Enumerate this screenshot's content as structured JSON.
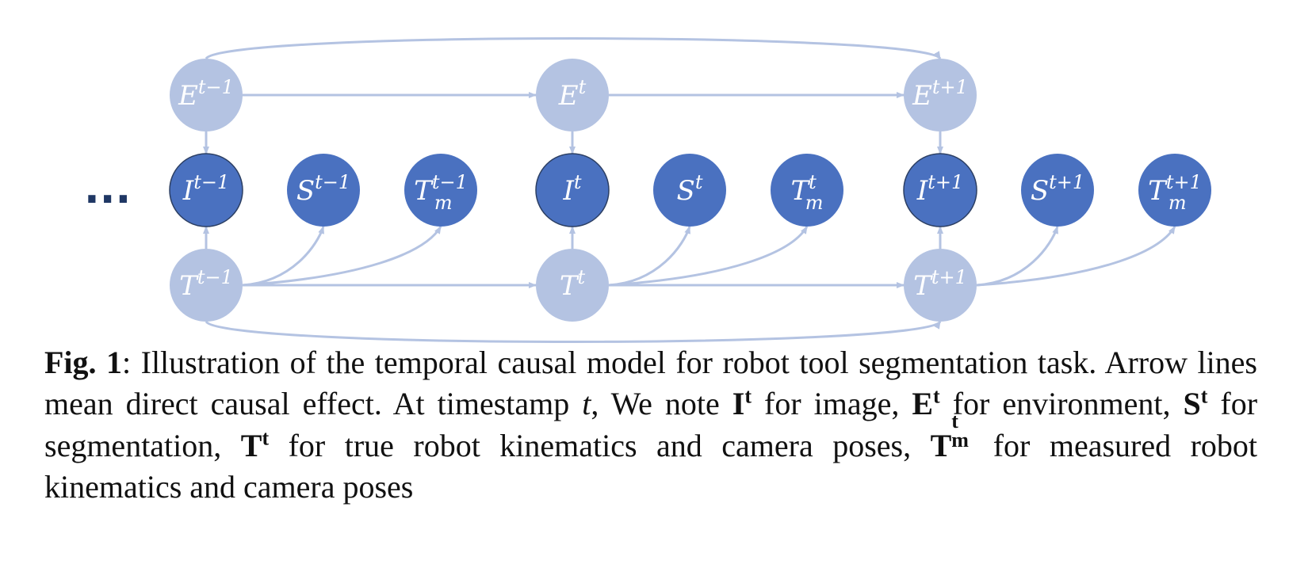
{
  "diagram": {
    "ellipsis": "...",
    "colors": {
      "light_node": "#b4c3e2",
      "dark_node": "#4a71c0",
      "dark_stroke": "#2c3f63",
      "edge": "#b4c3e2"
    },
    "columns": [
      {
        "env": {
          "base": "E",
          "sup": "t−1"
        },
        "image": {
          "base": "I",
          "sup": "t−1"
        },
        "seg": {
          "base": "S",
          "sup": "t−1"
        },
        "meas": {
          "base": "T",
          "sup": "t−1",
          "sub": "m"
        },
        "true": {
          "base": "T",
          "sup": "t−1"
        }
      },
      {
        "env": {
          "base": "E",
          "sup": "t"
        },
        "image": {
          "base": "I",
          "sup": "t"
        },
        "seg": {
          "base": "S",
          "sup": "t"
        },
        "meas": {
          "base": "T",
          "sup": "t",
          "sub": "m"
        },
        "true": {
          "base": "T",
          "sup": "t"
        }
      },
      {
        "env": {
          "base": "E",
          "sup": "t+1"
        },
        "image": {
          "base": "I",
          "sup": "t+1"
        },
        "seg": {
          "base": "S",
          "sup": "t+1"
        },
        "meas": {
          "base": "T",
          "sup": "t+1",
          "sub": "m"
        },
        "true": {
          "base": "T",
          "sup": "t+1"
        }
      }
    ]
  },
  "caption": {
    "fig_label": "Fig. 1",
    "p1": ": Illustration of the temporal causal model for robot tool segmentation task. Arrow lines mean direct causal effect. At timestamp ",
    "t_var": "t",
    "p2": ", We note ",
    "i_base": "I",
    "i_sup": "t",
    "p3": " for image, ",
    "e_base": "E",
    "e_sup": "t",
    "p4": " for environment, ",
    "s_base": "S",
    "s_sup": "t",
    "p5": " for segmentation, ",
    "t_base": "T",
    "t_sup": "t",
    "p6": " for true robot kinematics and camera poses, ",
    "tm_base": "T",
    "tm_sup": "t",
    "tm_sub": "m",
    "p7": " for measured robot kinematics and camera poses"
  }
}
